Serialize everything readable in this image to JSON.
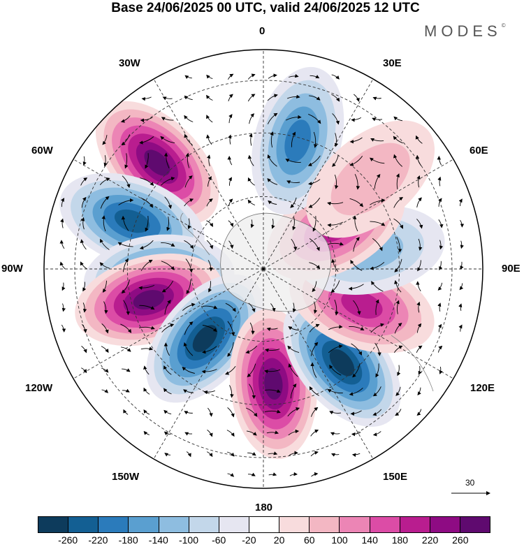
{
  "title": "Base 24/06/2025 00 UTC, valid 24/06/2025 12 UTC",
  "brand": {
    "name": "MODES",
    "mark": "©"
  },
  "longitudes": {
    "n0": "0",
    "w30": "30W",
    "e30": "30E",
    "w60": "60W",
    "e60": "60E",
    "w90": "90W",
    "e90": "90E",
    "w120": "120W",
    "e120": "120E",
    "w150": "150W",
    "e150": "150E",
    "s180": "180"
  },
  "vector_scale": {
    "value": "30"
  },
  "colorbar": {
    "colors": [
      "#0d3b5c",
      "#135f93",
      "#2b7bbb",
      "#5a9fd0",
      "#8ebde0",
      "#c3d7ea",
      "#e6e6f1",
      "#ffffff",
      "#f8dcdd",
      "#f3b7c3",
      "#ec85b5",
      "#dc4ca6",
      "#b91d8f",
      "#8e0b83",
      "#5f0a6f"
    ],
    "ticks": [
      "-260",
      "-220",
      "-180",
      "-140",
      "-100",
      "-60",
      "-20",
      "20",
      "60",
      "100",
      "140",
      "180",
      "220",
      "260"
    ]
  },
  "chart_data": {
    "type": "polar-map",
    "projection": "South polar stereographic",
    "field": "shaded anomaly with wind vectors",
    "color_levels": [
      -260,
      -220,
      -180,
      -140,
      -100,
      -60,
      -20,
      20,
      60,
      100,
      140,
      180,
      220,
      260
    ],
    "anomaly_centers": [
      {
        "lon": -45,
        "sign": "positive",
        "max": 260
      },
      {
        "lon": -70,
        "sign": "negative",
        "max": -220
      },
      {
        "lon": -95,
        "sign": "negative",
        "max": -220
      },
      {
        "lon": -105,
        "sign": "positive",
        "max": 260
      },
      {
        "lon": -140,
        "sign": "negative",
        "max": -260
      },
      {
        "lon": 175,
        "sign": "positive",
        "max": 260
      },
      {
        "lon": 140,
        "sign": "negative",
        "max": -260
      },
      {
        "lon": 110,
        "sign": "positive",
        "max": 180
      },
      {
        "lon": 80,
        "sign": "negative",
        "max": -100
      },
      {
        "lon": 60,
        "sign": "positive",
        "max": 180
      },
      {
        "lon": 15,
        "sign": "negative",
        "max": -180
      },
      {
        "lon": 50,
        "sign": "positive",
        "max": 60
      }
    ],
    "vector_reference": 30
  }
}
